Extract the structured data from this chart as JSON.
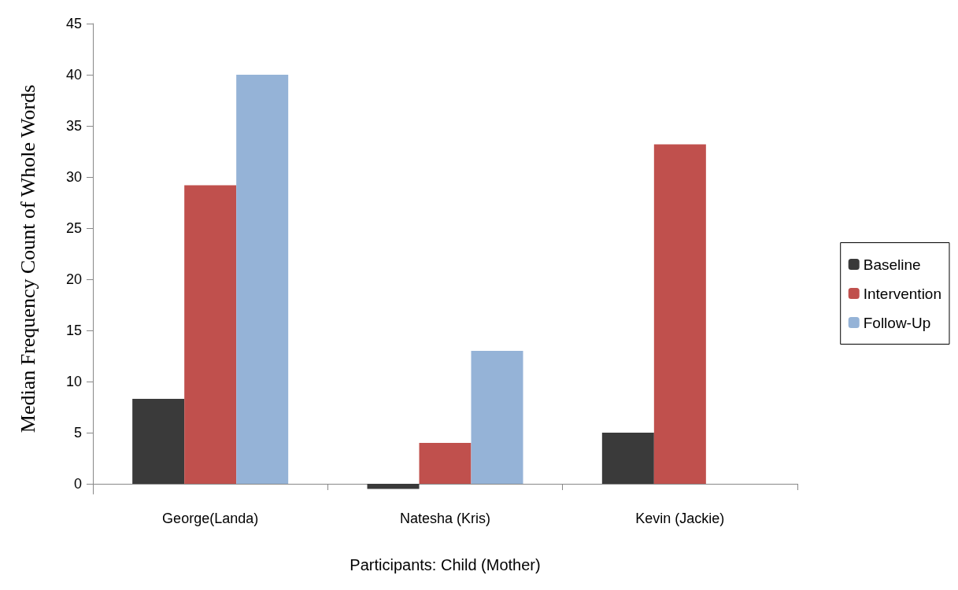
{
  "chart_data": {
    "type": "bar",
    "xlabel": "Participants: Child (Mother)",
    "ylabel": "Median Frequency Count of Whole Words",
    "categories": [
      "George(Landa)",
      "Natesha (Kris)",
      "Kevin (Jackie)"
    ],
    "series": [
      {
        "name": "Baseline",
        "color": "#3a3a3a",
        "values": [
          8.3,
          -0.5,
          5.0
        ]
      },
      {
        "name": "Intervention",
        "color": "#c0504d",
        "values": [
          29.2,
          4.0,
          33.2
        ]
      },
      {
        "name": "Follow-Up",
        "color": "#95b3d7",
        "values": [
          40,
          13,
          null
        ]
      }
    ],
    "ylim": [
      -1,
      45
    ],
    "yticks": [
      0,
      5,
      10,
      15,
      20,
      25,
      30,
      35,
      40,
      45
    ],
    "grid": false,
    "legend": "right"
  }
}
